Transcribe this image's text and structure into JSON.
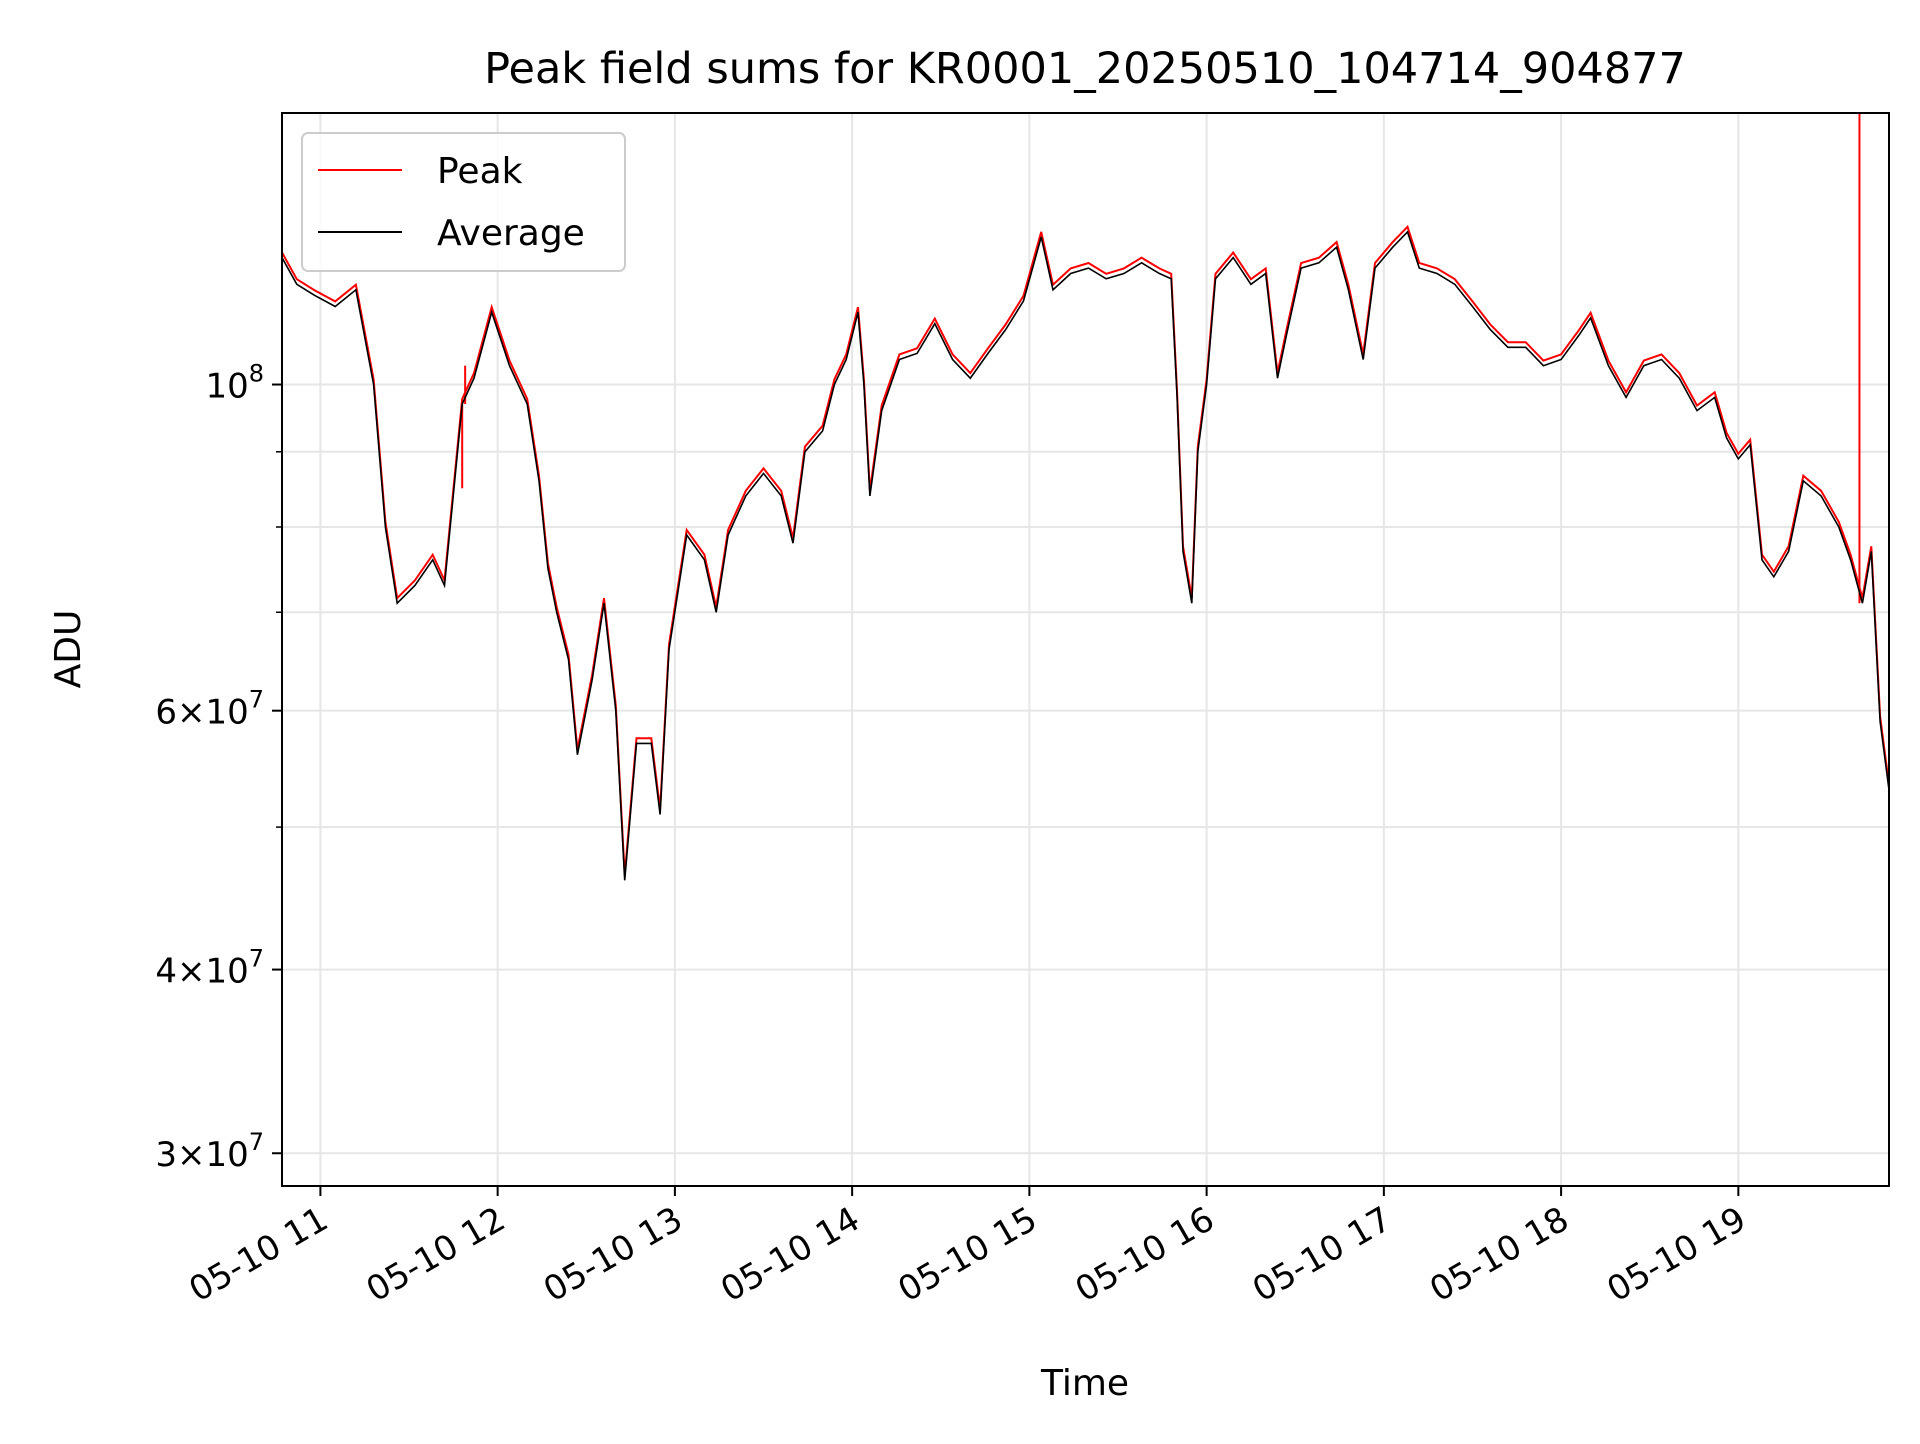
{
  "chart_data": {
    "type": "line",
    "title": "Peak field sums for KR0001_20250510_104714_904877",
    "xlabel": "Time",
    "ylabel": "ADU",
    "xlim": [
      "2025-05-10 10:47",
      "2025-05-10 19:51"
    ],
    "ylim": [
      28500000,
      153000000
    ],
    "yscale": "log",
    "grid": true,
    "legend_position": "top-left",
    "x_ticks": [
      "05-10 11",
      "05-10 12",
      "05-10 13",
      "05-10 14",
      "05-10 15",
      "05-10 16",
      "05-10 17",
      "05-10 18",
      "05-10 19"
    ],
    "y_ticks": [
      {
        "value": 30000000,
        "mantissa": "3",
        "base": "10",
        "exp": "7"
      },
      {
        "value": 40000000,
        "mantissa": "4",
        "base": "10",
        "exp": "7"
      },
      {
        "value": 60000000,
        "mantissa": "6",
        "base": "10",
        "exp": "7"
      },
      {
        "value": 100000000,
        "mantissa": "",
        "base": "10",
        "exp": "8"
      }
    ],
    "series": [
      {
        "name": "Peak",
        "color": "#ff0000",
        "spikes": [
          {
            "x": "2025-05-10 10:47",
            "y": 130000000
          },
          {
            "x": "2025-05-10 11:49",
            "y": 103000000
          },
          {
            "x": "2025-05-10 11:48",
            "y": 85000000
          },
          {
            "x": "2025-05-10 19:41",
            "y": 153000000
          }
        ]
      },
      {
        "name": "Average",
        "color": "#000000",
        "points": [
          [
            "2025-05-10 10:47",
            122000000
          ],
          [
            "2025-05-10 10:52",
            117000000
          ],
          [
            "2025-05-10 10:58",
            115000000
          ],
          [
            "2025-05-10 11:05",
            113000000
          ],
          [
            "2025-05-10 11:12",
            116000000
          ],
          [
            "2025-05-10 11:18",
            100000000
          ],
          [
            "2025-05-10 11:22",
            80000000
          ],
          [
            "2025-05-10 11:26",
            71000000
          ],
          [
            "2025-05-10 11:32",
            73000000
          ],
          [
            "2025-05-10 11:38",
            76000000
          ],
          [
            "2025-05-10 11:42",
            73000000
          ],
          [
            "2025-05-10 11:48",
            97000000
          ],
          [
            "2025-05-10 11:52",
            101000000
          ],
          [
            "2025-05-10 11:58",
            112000000
          ],
          [
            "2025-05-10 12:04",
            103000000
          ],
          [
            "2025-05-10 12:10",
            97000000
          ],
          [
            "2025-05-10 12:14",
            86000000
          ],
          [
            "2025-05-10 12:17",
            75000000
          ],
          [
            "2025-05-10 12:20",
            70000000
          ],
          [
            "2025-05-10 12:24",
            65000000
          ],
          [
            "2025-05-10 12:27",
            56000000
          ],
          [
            "2025-05-10 12:32",
            63000000
          ],
          [
            "2025-05-10 12:36",
            71000000
          ],
          [
            "2025-05-10 12:40",
            60000000
          ],
          [
            "2025-05-10 12:43",
            46000000
          ],
          [
            "2025-05-10 12:47",
            57000000
          ],
          [
            "2025-05-10 12:52",
            57000000
          ],
          [
            "2025-05-10 12:55",
            51000000
          ],
          [
            "2025-05-10 12:58",
            66000000
          ],
          [
            "2025-05-10 13:04",
            79000000
          ],
          [
            "2025-05-10 13:10",
            76000000
          ],
          [
            "2025-05-10 13:14",
            70000000
          ],
          [
            "2025-05-10 13:18",
            79000000
          ],
          [
            "2025-05-10 13:24",
            84000000
          ],
          [
            "2025-05-10 13:30",
            87000000
          ],
          [
            "2025-05-10 13:36",
            84000000
          ],
          [
            "2025-05-10 13:40",
            78000000
          ],
          [
            "2025-05-10 13:44",
            90000000
          ],
          [
            "2025-05-10 13:50",
            93000000
          ],
          [
            "2025-05-10 13:54",
            100000000
          ],
          [
            "2025-05-10 13:58",
            104000000
          ],
          [
            "2025-05-10 14:02",
            112000000
          ],
          [
            "2025-05-10 14:04",
            100000000
          ],
          [
            "2025-05-10 14:06",
            84000000
          ],
          [
            "2025-05-10 14:10",
            96000000
          ],
          [
            "2025-05-10 14:16",
            104000000
          ],
          [
            "2025-05-10 14:22",
            105000000
          ],
          [
            "2025-05-10 14:28",
            110000000
          ],
          [
            "2025-05-10 14:34",
            104000000
          ],
          [
            "2025-05-10 14:40",
            101000000
          ],
          [
            "2025-05-10 14:46",
            105000000
          ],
          [
            "2025-05-10 14:52",
            109000000
          ],
          [
            "2025-05-10 14:58",
            114000000
          ],
          [
            "2025-05-10 15:04",
            126000000
          ],
          [
            "2025-05-10 15:08",
            116000000
          ],
          [
            "2025-05-10 15:14",
            119000000
          ],
          [
            "2025-05-10 15:20",
            120000000
          ],
          [
            "2025-05-10 15:26",
            118000000
          ],
          [
            "2025-05-10 15:32",
            119000000
          ],
          [
            "2025-05-10 15:38",
            121000000
          ],
          [
            "2025-05-10 15:44",
            119000000
          ],
          [
            "2025-05-10 15:48",
            118000000
          ],
          [
            "2025-05-10 15:50",
            98000000
          ],
          [
            "2025-05-10 15:52",
            77000000
          ],
          [
            "2025-05-10 15:55",
            71000000
          ],
          [
            "2025-05-10 15:57",
            90000000
          ],
          [
            "2025-05-10 16:00",
            100000000
          ],
          [
            "2025-05-10 16:03",
            118000000
          ],
          [
            "2025-05-10 16:09",
            122000000
          ],
          [
            "2025-05-10 16:15",
            117000000
          ],
          [
            "2025-05-10 16:20",
            119000000
          ],
          [
            "2025-05-10 16:24",
            101000000
          ],
          [
            "2025-05-10 16:27",
            108000000
          ],
          [
            "2025-05-10 16:32",
            120000000
          ],
          [
            "2025-05-10 16:38",
            121000000
          ],
          [
            "2025-05-10 16:44",
            124000000
          ],
          [
            "2025-05-10 16:48",
            116000000
          ],
          [
            "2025-05-10 16:53",
            104000000
          ],
          [
            "2025-05-10 16:57",
            120000000
          ],
          [
            "2025-05-10 17:03",
            124000000
          ],
          [
            "2025-05-10 17:08",
            127000000
          ],
          [
            "2025-05-10 17:12",
            120000000
          ],
          [
            "2025-05-10 17:18",
            119000000
          ],
          [
            "2025-05-10 17:24",
            117000000
          ],
          [
            "2025-05-10 17:30",
            113000000
          ],
          [
            "2025-05-10 17:36",
            109000000
          ],
          [
            "2025-05-10 17:42",
            106000000
          ],
          [
            "2025-05-10 17:48",
            106000000
          ],
          [
            "2025-05-10 17:54",
            103000000
          ],
          [
            "2025-05-10 18:00",
            104000000
          ],
          [
            "2025-05-10 18:06",
            108000000
          ],
          [
            "2025-05-10 18:10",
            111000000
          ],
          [
            "2025-05-10 18:16",
            103000000
          ],
          [
            "2025-05-10 18:22",
            98000000
          ],
          [
            "2025-05-10 18:28",
            103000000
          ],
          [
            "2025-05-10 18:34",
            104000000
          ],
          [
            "2025-05-10 18:40",
            101000000
          ],
          [
            "2025-05-10 18:46",
            96000000
          ],
          [
            "2025-05-10 18:52",
            98000000
          ],
          [
            "2025-05-10 18:56",
            92000000
          ],
          [
            "2025-05-10 19:00",
            89000000
          ],
          [
            "2025-05-10 19:04",
            91000000
          ],
          [
            "2025-05-10 19:08",
            76000000
          ],
          [
            "2025-05-10 19:12",
            74000000
          ],
          [
            "2025-05-10 19:17",
            77000000
          ],
          [
            "2025-05-10 19:22",
            86000000
          ],
          [
            "2025-05-10 19:28",
            84000000
          ],
          [
            "2025-05-10 19:34",
            80000000
          ],
          [
            "2025-05-10 19:38",
            76000000
          ],
          [
            "2025-05-10 19:42",
            71000000
          ],
          [
            "2025-05-10 19:45",
            77000000
          ],
          [
            "2025-05-10 19:48",
            59000000
          ],
          [
            "2025-05-10 19:51",
            53000000
          ]
        ]
      }
    ]
  }
}
